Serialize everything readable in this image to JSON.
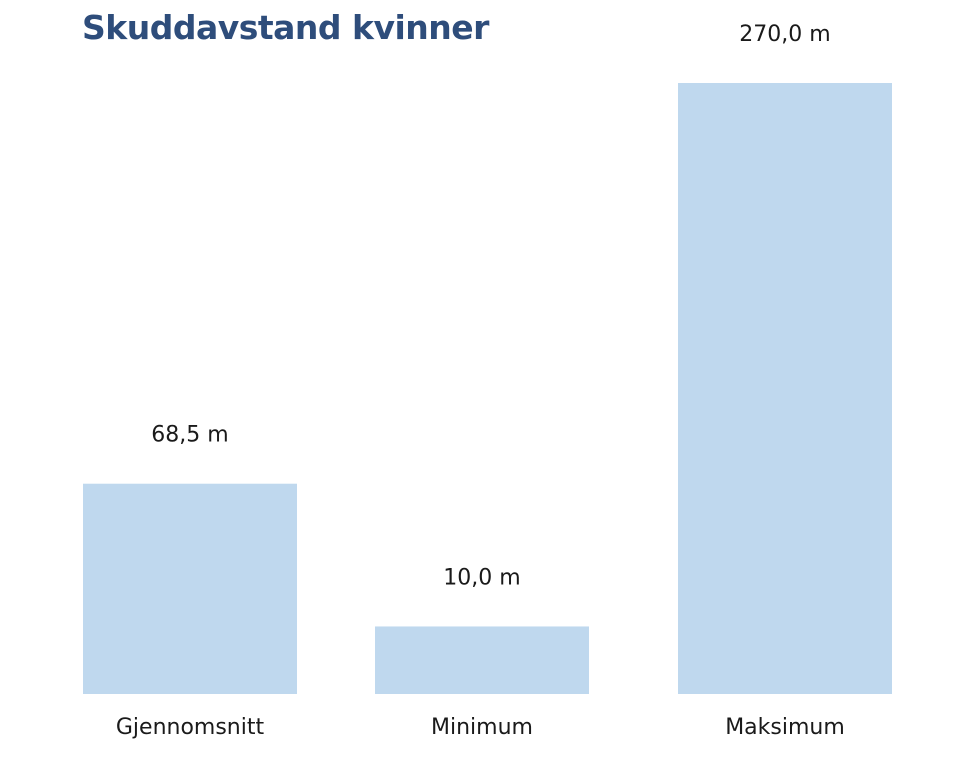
{
  "chart_data": {
    "type": "bar",
    "title": "Skuddavstand kvinner",
    "categories": [
      "Gjennomsnitt",
      "Minimum",
      "Maksimum"
    ],
    "values": [
      68.5,
      10.0,
      270.0
    ],
    "value_labels": [
      "68,5 m",
      "10,0 m",
      "270,0 m"
    ],
    "unit": "m",
    "bar_color": "#bfd8ee",
    "title_color": "#2e4d7b",
    "grid": false,
    "legend": "none",
    "xlabel": "",
    "ylabel": ""
  }
}
